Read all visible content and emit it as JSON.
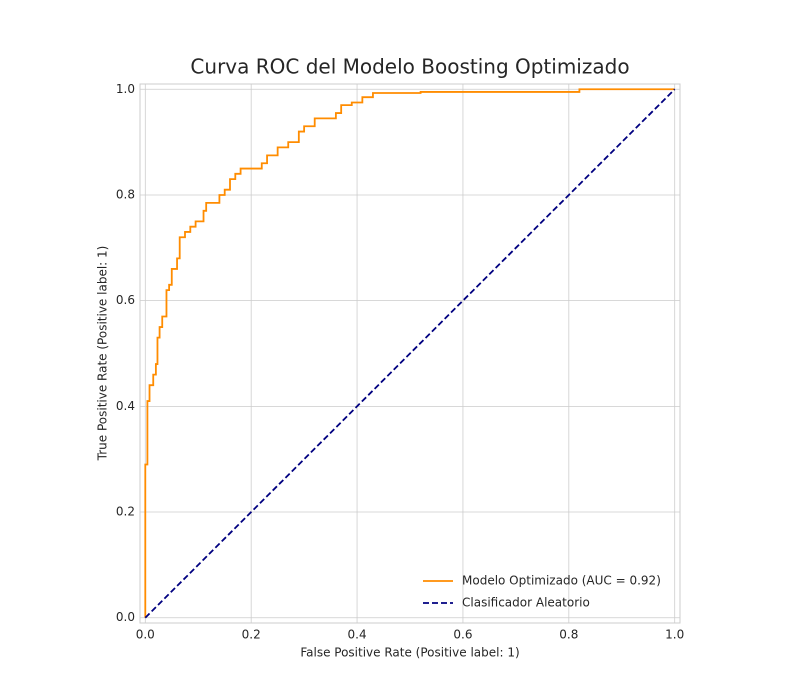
{
  "chart_data": {
    "type": "line",
    "title": "Curva ROC del Modelo Boosting Optimizado",
    "x_label": "False Positive Rate (Positive label: 1)",
    "y_label": "True Positive Rate (Positive label: 1)",
    "xlim": [
      -0.01,
      1.01
    ],
    "ylim": [
      -0.01,
      1.01
    ],
    "xticks": [
      {
        "value": 0,
        "label": "0.0"
      },
      0.2,
      0.4,
      0.6,
      0.8,
      {
        "value": 1,
        "label": "1.0"
      }
    ],
    "yticks": [
      {
        "value": 0,
        "label": "0.0"
      },
      0.2,
      0.4,
      0.6,
      0.8,
      {
        "value": 1,
        "label": "1.0"
      }
    ],
    "grid": true,
    "legend": "lower right",
    "series": [
      {
        "name": "Modelo Optimizado (AUC = 0.92)",
        "color": "#ff8c00",
        "dash": false,
        "x": [
          0,
          0,
          0.004,
          0.004,
          0.008,
          0.008,
          0.015,
          0.015,
          0.02,
          0.02,
          0.023,
          0.023,
          0.027,
          0.027,
          0.032,
          0.032,
          0.04,
          0.04,
          0.045,
          0.045,
          0.05,
          0.05,
          0.06,
          0.06,
          0.065,
          0.065,
          0.075,
          0.075,
          0.085,
          0.085,
          0.095,
          0.095,
          0.11,
          0.11,
          0.115,
          0.115,
          0.14,
          0.14,
          0.15,
          0.15,
          0.16,
          0.16,
          0.17,
          0.17,
          0.18,
          0.18,
          0.22,
          0.22,
          0.23,
          0.23,
          0.25,
          0.25,
          0.27,
          0.27,
          0.29,
          0.29,
          0.3,
          0.3,
          0.32,
          0.32,
          0.36,
          0.36,
          0.37,
          0.37,
          0.39,
          0.39,
          0.41,
          0.41,
          0.43,
          0.43,
          0.52,
          0.52,
          0.82,
          0.82,
          1
        ],
        "values": [
          0,
          0.29,
          0.29,
          0.41,
          0.41,
          0.44,
          0.44,
          0.46,
          0.46,
          0.48,
          0.48,
          0.53,
          0.53,
          0.55,
          0.55,
          0.57,
          0.57,
          0.62,
          0.62,
          0.63,
          0.63,
          0.66,
          0.66,
          0.68,
          0.68,
          0.72,
          0.72,
          0.73,
          0.73,
          0.74,
          0.74,
          0.75,
          0.75,
          0.77,
          0.77,
          0.785,
          0.785,
          0.8,
          0.8,
          0.81,
          0.81,
          0.83,
          0.83,
          0.84,
          0.84,
          0.85,
          0.85,
          0.86,
          0.86,
          0.875,
          0.875,
          0.89,
          0.89,
          0.9,
          0.9,
          0.92,
          0.92,
          0.93,
          0.93,
          0.945,
          0.945,
          0.955,
          0.955,
          0.97,
          0.97,
          0.975,
          0.975,
          0.985,
          0.985,
          0.993,
          0.993,
          0.995,
          0.995,
          1,
          1
        ]
      },
      {
        "name": "Clasificador Aleatorio",
        "color": "#000080",
        "dash": true,
        "x": [
          0,
          1
        ],
        "values": [
          0,
          1
        ]
      }
    ]
  }
}
